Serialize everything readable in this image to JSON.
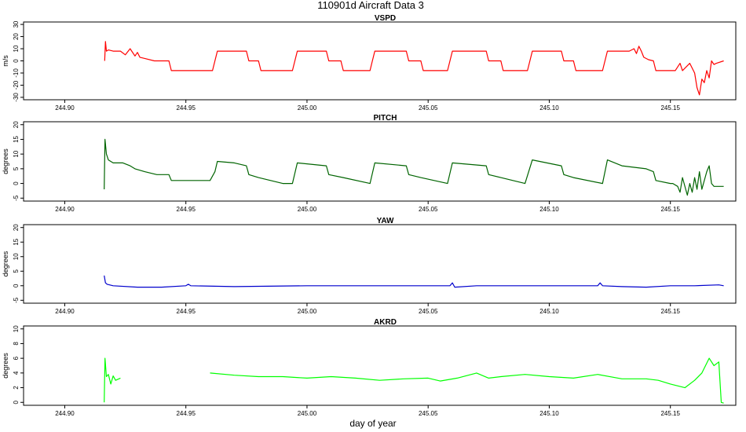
{
  "figure": {
    "title": "110901d   Aircraft Data 3",
    "xlabel": "day of year"
  },
  "chart_data": [
    {
      "type": "line",
      "title": "VSPD",
      "ylabel": "m/s",
      "color": "#ff0000",
      "xlim": [
        244.883,
        245.177
      ],
      "ylim": [
        -32,
        32
      ],
      "xticks": [
        244.9,
        244.95,
        245.0,
        245.05,
        245.1,
        245.15
      ],
      "xtick_labels": [
        "244.90",
        "244.95",
        "245.00",
        "245.05",
        "245.10",
        "245.15"
      ],
      "yticks": [
        -30,
        -20,
        -10,
        0,
        10,
        20,
        30
      ],
      "ytick_labels": [
        "-30",
        "-20",
        "-10",
        "0",
        "10",
        "20",
        "30"
      ],
      "series": [
        {
          "points": [
            [
              244.9165,
              0
            ],
            [
              244.9168,
              16
            ],
            [
              244.9172,
              8
            ],
            [
              244.918,
              9
            ],
            [
              244.92,
              8
            ],
            [
              244.923,
              8
            ],
            [
              244.925,
              5
            ],
            [
              244.927,
              10
            ],
            [
              244.929,
              4
            ],
            [
              244.93,
              7
            ],
            [
              244.931,
              3
            ],
            [
              244.933,
              2
            ],
            [
              244.937,
              0
            ],
            [
              244.943,
              0
            ],
            [
              244.944,
              -8
            ],
            [
              244.953,
              -8
            ],
            [
              244.961,
              -8
            ],
            [
              244.962,
              0
            ],
            [
              244.963,
              8
            ],
            [
              244.975,
              8
            ],
            [
              244.976,
              0
            ],
            [
              244.98,
              0
            ],
            [
              244.981,
              -8
            ],
            [
              244.994,
              -8
            ],
            [
              244.995,
              0
            ],
            [
              244.996,
              8
            ],
            [
              245.008,
              8
            ],
            [
              245.009,
              0
            ],
            [
              245.014,
              0
            ],
            [
              245.015,
              -8
            ],
            [
              245.026,
              -8
            ],
            [
              245.027,
              0
            ],
            [
              245.028,
              8
            ],
            [
              245.041,
              8
            ],
            [
              245.042,
              0
            ],
            [
              245.047,
              0
            ],
            [
              245.048,
              -8
            ],
            [
              245.058,
              -8
            ],
            [
              245.059,
              0
            ],
            [
              245.06,
              8
            ],
            [
              245.074,
              8
            ],
            [
              245.075,
              0
            ],
            [
              245.08,
              0
            ],
            [
              245.081,
              -8
            ],
            [
              245.091,
              -8
            ],
            [
              245.092,
              0
            ],
            [
              245.093,
              8
            ],
            [
              245.105,
              8
            ],
            [
              245.106,
              0
            ],
            [
              245.11,
              0
            ],
            [
              245.111,
              -8
            ],
            [
              245.122,
              -8
            ],
            [
              245.123,
              0
            ],
            [
              245.124,
              8
            ],
            [
              245.133,
              8
            ],
            [
              245.135,
              10
            ],
            [
              245.136,
              6
            ],
            [
              245.137,
              12
            ],
            [
              245.138,
              8
            ],
            [
              245.139,
              3
            ],
            [
              245.141,
              1
            ],
            [
              245.143,
              0
            ],
            [
              245.144,
              -8
            ],
            [
              245.152,
              -8
            ],
            [
              245.154,
              -2
            ],
            [
              245.155,
              -8
            ],
            [
              245.158,
              -2
            ],
            [
              245.16,
              -10
            ],
            [
              245.161,
              -22
            ],
            [
              245.162,
              -28
            ],
            [
              245.163,
              -15
            ],
            [
              245.164,
              -18
            ],
            [
              245.165,
              -8
            ],
            [
              245.166,
              -14
            ],
            [
              245.167,
              0
            ],
            [
              245.168,
              -3
            ],
            [
              245.169,
              -2
            ],
            [
              245.172,
              0
            ]
          ]
        }
      ]
    },
    {
      "type": "line",
      "title": "PITCH",
      "ylabel": "degrees",
      "color": "#006400",
      "xlim": [
        244.883,
        245.177
      ],
      "ylim": [
        -6,
        21
      ],
      "xticks": [
        244.9,
        244.95,
        245.0,
        245.05,
        245.1,
        245.15
      ],
      "xtick_labels": [
        "244.90",
        "244.95",
        "245.00",
        "245.05",
        "245.10",
        "245.15"
      ],
      "yticks": [
        -5,
        0,
        5,
        10,
        15,
        20
      ],
      "ytick_labels": [
        "-5",
        "0",
        "5",
        "10",
        "15",
        "20"
      ],
      "series": [
        {
          "points": [
            [
              244.9163,
              -2
            ],
            [
              244.9166,
              15
            ],
            [
              244.9172,
              10
            ],
            [
              244.918,
              8
            ],
            [
              244.92,
              7
            ],
            [
              244.924,
              7
            ],
            [
              244.927,
              6
            ],
            [
              244.929,
              5
            ],
            [
              244.933,
              4
            ],
            [
              244.938,
              3
            ],
            [
              244.943,
              3
            ],
            [
              244.944,
              1
            ],
            [
              244.953,
              1
            ],
            [
              244.96,
              1
            ],
            [
              244.962,
              4
            ],
            [
              244.963,
              7.5
            ],
            [
              244.97,
              7
            ],
            [
              244.975,
              6
            ],
            [
              244.976,
              3
            ],
            [
              244.98,
              2
            ],
            [
              244.99,
              0
            ],
            [
              244.994,
              0
            ],
            [
              244.996,
              7
            ],
            [
              245.008,
              6
            ],
            [
              245.009,
              3
            ],
            [
              245.015,
              2
            ],
            [
              245.026,
              0
            ],
            [
              245.028,
              7
            ],
            [
              245.041,
              6
            ],
            [
              245.042,
              3
            ],
            [
              245.047,
              2
            ],
            [
              245.058,
              0
            ],
            [
              245.06,
              7
            ],
            [
              245.074,
              6
            ],
            [
              245.075,
              3
            ],
            [
              245.08,
              2
            ],
            [
              245.09,
              0
            ],
            [
              245.093,
              8
            ],
            [
              245.105,
              6
            ],
            [
              245.106,
              3
            ],
            [
              245.11,
              2
            ],
            [
              245.122,
              0
            ],
            [
              245.124,
              8
            ],
            [
              245.13,
              6
            ],
            [
              245.14,
              5
            ],
            [
              245.143,
              4
            ],
            [
              245.144,
              1
            ],
            [
              245.15,
              0
            ],
            [
              245.151,
              0
            ],
            [
              245.153,
              -1
            ],
            [
              245.154,
              -3
            ],
            [
              245.155,
              2
            ],
            [
              245.157,
              -4
            ],
            [
              245.158,
              0
            ],
            [
              245.159,
              -3
            ],
            [
              245.16,
              2
            ],
            [
              245.161,
              -2
            ],
            [
              245.162,
              4
            ],
            [
              245.163,
              -2
            ],
            [
              245.165,
              4
            ],
            [
              245.166,
              6
            ],
            [
              245.167,
              0
            ],
            [
              245.168,
              -1
            ],
            [
              245.169,
              -1
            ],
            [
              245.172,
              -1
            ]
          ]
        }
      ]
    },
    {
      "type": "line",
      "title": "YAW",
      "ylabel": "degrees",
      "color": "#0000cd",
      "xlim": [
        244.883,
        245.177
      ],
      "ylim": [
        -6,
        21
      ],
      "xticks": [
        244.9,
        244.95,
        245.0,
        245.05,
        245.1,
        245.15
      ],
      "xtick_labels": [
        "244.90",
        "244.95",
        "245.00",
        "245.05",
        "245.10",
        "245.15"
      ],
      "yticks": [
        -5,
        0,
        5,
        10,
        15,
        20
      ],
      "ytick_labels": [
        "-5",
        "0",
        "5",
        "10",
        "15",
        "20"
      ],
      "series": [
        {
          "points": [
            [
              244.9163,
              3.5
            ],
            [
              244.9168,
              1
            ],
            [
              244.9175,
              0.5
            ],
            [
              244.92,
              0
            ],
            [
              244.93,
              -0.5
            ],
            [
              244.94,
              -0.5
            ],
            [
              244.95,
              0
            ],
            [
              244.951,
              0.5
            ],
            [
              244.952,
              0
            ],
            [
              244.97,
              -0.3
            ],
            [
              245.0,
              0
            ],
            [
              245.02,
              0
            ],
            [
              245.04,
              0
            ],
            [
              245.059,
              0
            ],
            [
              245.06,
              1
            ],
            [
              245.061,
              -0.5
            ],
            [
              245.07,
              0
            ],
            [
              245.09,
              0
            ],
            [
              245.11,
              0
            ],
            [
              245.12,
              0
            ],
            [
              245.121,
              1
            ],
            [
              245.122,
              0
            ],
            [
              245.13,
              -0.3
            ],
            [
              245.14,
              -0.5
            ],
            [
              245.15,
              0
            ],
            [
              245.16,
              0
            ],
            [
              245.17,
              0.3
            ],
            [
              245.172,
              0
            ]
          ]
        }
      ]
    },
    {
      "type": "line",
      "title": "AKRD",
      "ylabel": "degrees",
      "color": "#00ff00",
      "xlim": [
        244.883,
        245.177
      ],
      "ylim": [
        -0.4,
        10.4
      ],
      "xticks": [
        244.9,
        244.95,
        245.0,
        245.05,
        245.1,
        245.15
      ],
      "xtick_labels": [
        "244.90",
        "244.95",
        "245.00",
        "245.05",
        "245.10",
        "245.15"
      ],
      "yticks": [
        0,
        2,
        4,
        6,
        8,
        10
      ],
      "ytick_labels": [
        "0",
        "2",
        "4",
        "6",
        "8",
        "10"
      ],
      "series": [
        {
          "points": [
            [
              244.9163,
              0
            ],
            [
              244.9166,
              6
            ],
            [
              244.9172,
              3.5
            ],
            [
              244.918,
              3.8
            ],
            [
              244.919,
              2.5
            ],
            [
              244.92,
              3.6
            ],
            [
              244.921,
              3
            ],
            [
              244.923,
              3.3
            ]
          ]
        },
        {
          "points": [
            [
              244.96,
              4
            ],
            [
              244.97,
              3.7
            ],
            [
              244.98,
              3.5
            ],
            [
              244.99,
              3.5
            ],
            [
              245.0,
              3.3
            ],
            [
              245.01,
              3.5
            ],
            [
              245.02,
              3.3
            ],
            [
              245.03,
              3
            ],
            [
              245.04,
              3.2
            ],
            [
              245.05,
              3.3
            ],
            [
              245.055,
              2.9
            ],
            [
              245.062,
              3.3
            ],
            [
              245.07,
              4
            ],
            [
              245.075,
              3.3
            ],
            [
              245.08,
              3.5
            ],
            [
              245.09,
              3.8
            ],
            [
              245.1,
              3.5
            ],
            [
              245.11,
              3.3
            ],
            [
              245.12,
              3.8
            ],
            [
              245.13,
              3.2
            ],
            [
              245.14,
              3.2
            ],
            [
              245.145,
              3
            ],
            [
              245.15,
              2.5
            ],
            [
              245.156,
              2
            ],
            [
              245.16,
              3
            ],
            [
              245.163,
              4
            ],
            [
              245.166,
              6
            ],
            [
              245.168,
              5
            ],
            [
              245.17,
              5.5
            ],
            [
              245.171,
              0
            ],
            [
              245.172,
              -0.1
            ]
          ]
        }
      ]
    }
  ]
}
